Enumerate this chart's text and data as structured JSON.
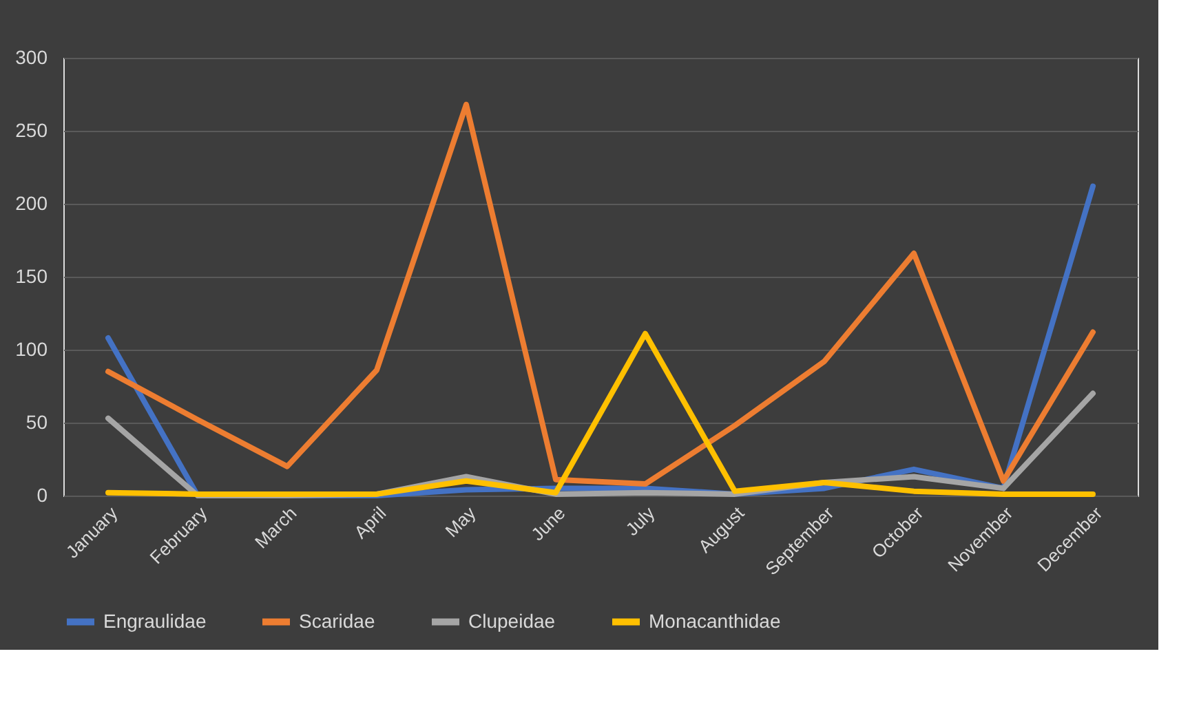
{
  "chart_data": {
    "type": "line",
    "categories": [
      "January",
      "February",
      "March",
      "April",
      "May",
      "June",
      "July",
      "August",
      "September",
      "October",
      "November",
      "December"
    ],
    "series": [
      {
        "name": "Engraulidae",
        "color": "#4472c4",
        "values": [
          108,
          0,
          0,
          0,
          4,
          5,
          5,
          1,
          5,
          18,
          5,
          212
        ]
      },
      {
        "name": "Scaridae",
        "color": "#ed7d31",
        "values": [
          85,
          52,
          20,
          86,
          268,
          11,
          8,
          48,
          92,
          166,
          10,
          112
        ]
      },
      {
        "name": "Clupeidae",
        "color": "#a5a5a5",
        "values": [
          53,
          0,
          0,
          1,
          13,
          1,
          2,
          1,
          9,
          13,
          5,
          70
        ]
      },
      {
        "name": "Monacanthidae",
        "color": "#ffc000",
        "values": [
          2,
          1,
          1,
          1,
          10,
          2,
          111,
          3,
          9,
          3,
          1,
          1
        ]
      }
    ],
    "ylim": [
      0,
      300
    ],
    "yticks": [
      0,
      50,
      100,
      150,
      200,
      250,
      300
    ],
    "grid": "y",
    "legend": "bottom",
    "marker": "none",
    "line_style": "solid"
  }
}
